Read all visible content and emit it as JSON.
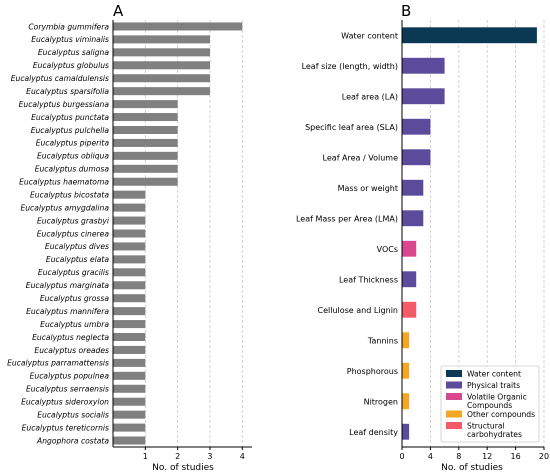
{
  "chart_data": [
    {
      "type": "bar",
      "orientation": "horizontal",
      "panel_label": "A",
      "title": "",
      "xlabel": "No. of studies",
      "ylabel": "",
      "xlim": [
        0,
        4.3
      ],
      "xticks": [
        1,
        2,
        3,
        4
      ],
      "grid": "x-dashed",
      "bar_color": "#808080",
      "categories": [
        "Corymbia gummifera",
        "Eucalyptus viminalis",
        "Eucalyptus saligna",
        "Eucalyptus globulus",
        "Eucalyptus camaldulensis",
        "Eucalyptus sparsifolia",
        "Eucalyptus burgessiana",
        "Eucalyptus punctata",
        "Eucalyptus pulchella",
        "Eucalyptus piperita",
        "Eucalyptus obliqua",
        "Eucalyptus dumosa",
        "Eucalyptus haematoma",
        "Eucalyptus bicostata",
        "Eucalyptus amygdalina",
        "Eucalyptus grasbyi",
        "Eucalyptus cinerea",
        "Eucalyptus dives",
        "Eucalyptus elata",
        "Eucalyptus gracilis",
        "Eucalyptus marginata",
        "Eucalyptus grossa",
        "Eucalyptus mannifera",
        "Eucalyptus umbra",
        "Eucalyptus neglecta",
        "Eucalyptus oreades",
        "Eucalyptus parramattensis",
        "Eucalyptus populnea",
        "Eucalyptus serraensis",
        "Eucalyptus sideroxylon",
        "Eucalyptus socialis",
        "Eucalyptus tereticornis",
        "Angophora costata"
      ],
      "values": [
        4,
        3,
        3,
        3,
        3,
        3,
        2,
        2,
        2,
        2,
        2,
        2,
        2,
        1,
        1,
        1,
        1,
        1,
        1,
        1,
        1,
        1,
        1,
        1,
        1,
        1,
        1,
        1,
        1,
        1,
        1,
        1,
        1
      ]
    },
    {
      "type": "bar",
      "orientation": "horizontal",
      "panel_label": "B",
      "title": "",
      "xlabel": "No. of studies",
      "ylabel": "",
      "xlim": [
        0,
        20
      ],
      "xticks": [
        0,
        4,
        8,
        12,
        16,
        20
      ],
      "grid": "x-dashed",
      "categories": [
        "Water content",
        "Leaf size (length, width)",
        "Leaf area (LA)",
        "Specific leaf area (SLA)",
        "Leaf Area / Volume",
        "Mass or weight",
        "Leaf Mass per Area (LMA)",
        "VOCs",
        "Leaf Thickness",
        "Cellulose and Lignin",
        "Tannins",
        "Phosphorous",
        "Nitrogen",
        "Leaf density"
      ],
      "values": [
        19,
        6,
        6,
        4,
        4,
        3,
        3,
        2,
        2,
        2,
        1,
        1,
        1,
        1
      ],
      "groups": [
        "water",
        "physical",
        "physical",
        "physical",
        "physical",
        "physical",
        "physical",
        "voc",
        "physical",
        "structural",
        "other",
        "other",
        "other",
        "physical"
      ],
      "legend": {
        "placement": "lower-right",
        "entries": [
          {
            "key": "water",
            "label": "Water content",
            "color": "#0b3954"
          },
          {
            "key": "physical",
            "label": "Physical traits",
            "color": "#5a4c9a"
          },
          {
            "key": "voc",
            "label": "Volatile Organic Compounds",
            "color": "#d9478f"
          },
          {
            "key": "other",
            "label": "Other compounds",
            "color": "#f5a623"
          },
          {
            "key": "structural",
            "label": "Structural carbohydrates",
            "color": "#f45b69"
          }
        ]
      }
    }
  ]
}
